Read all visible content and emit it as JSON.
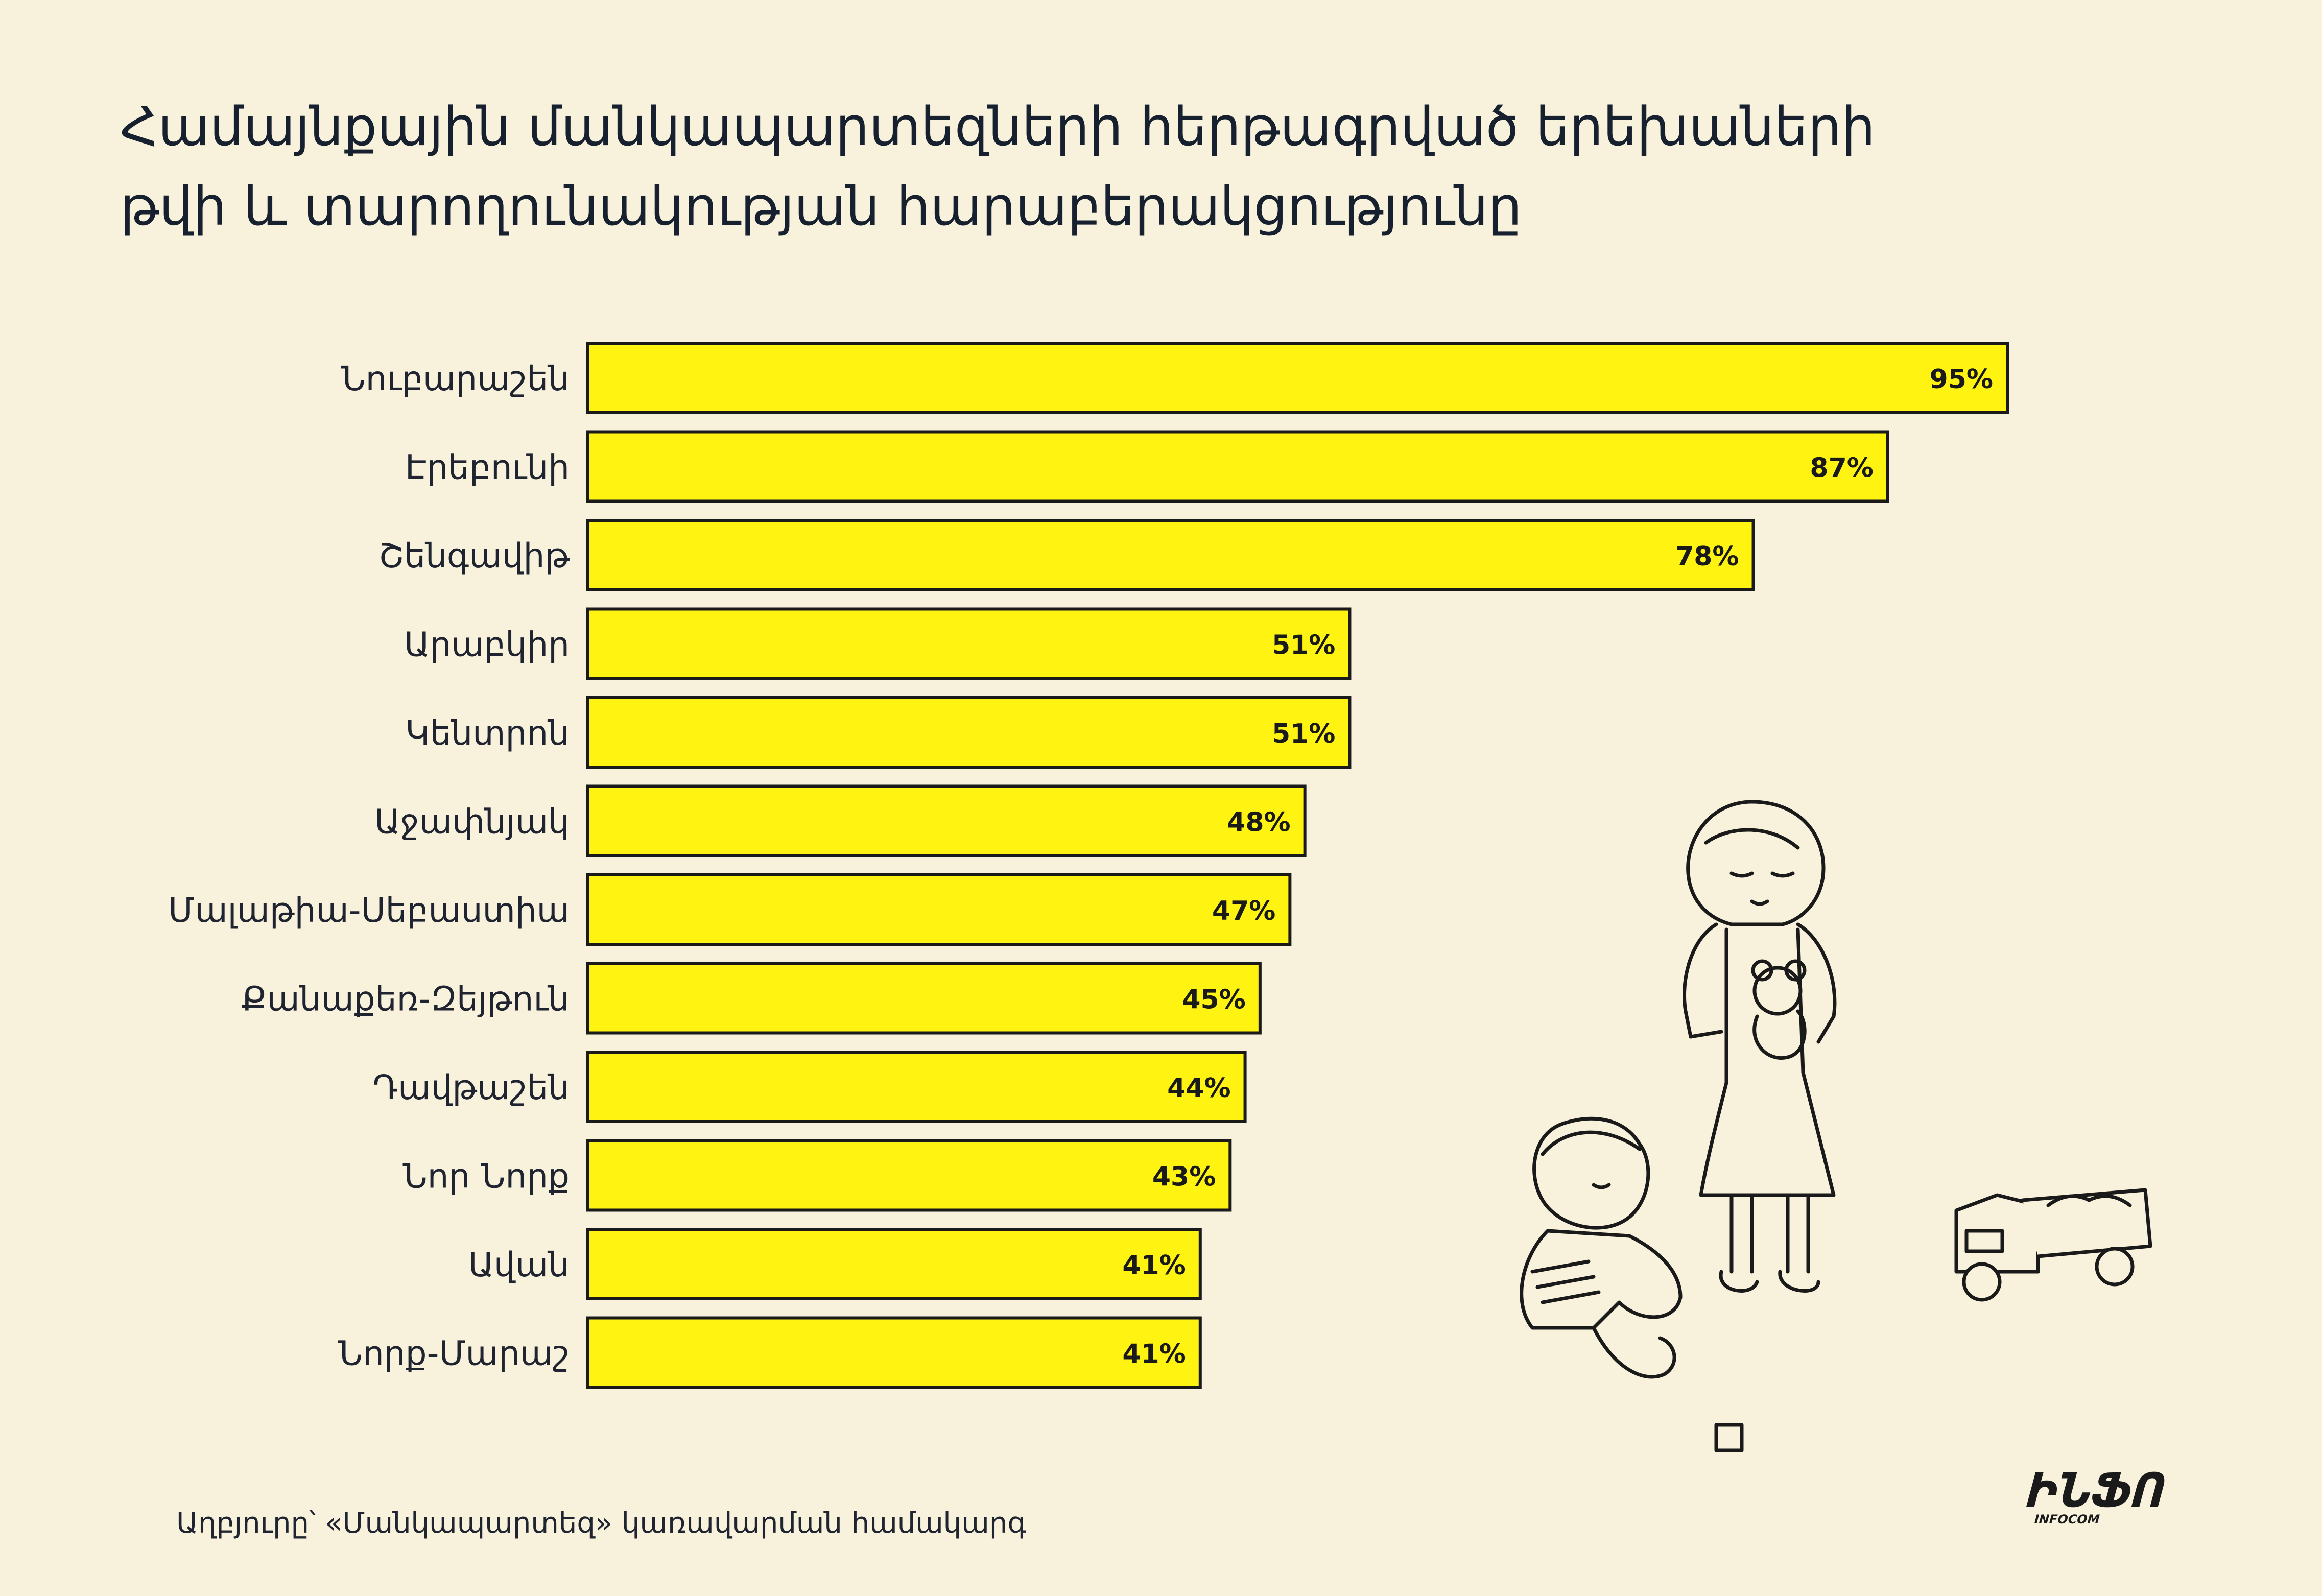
{
  "header": {
    "title_line1": "Համայնքային մանկապարտեզների հերթագրված երեխաների",
    "title_line2": "թվի և տարողունակության հարաբերակցությունը"
  },
  "footer": {
    "source": "Աղբյուրը՝ «Մանկապարտեզ» կառավարման համակարգ",
    "logo_text": "ԻՆՖՈ",
    "logo_subtext": "INFOCOM"
  },
  "colors": {
    "bar": "#fff312",
    "background": "#f8f2dc",
    "outline": "#1a1a1a"
  },
  "chart_data": {
    "type": "bar",
    "orientation": "horizontal",
    "title": "Համայնքային մանկապարտեզների հերթագրված երեխաների թվի և տարողունակության հարաբերակցությունը",
    "categories": [
      "Նուբարաշեն",
      "Էրեբունի",
      "Շենգավիթ",
      "Արաբկիր",
      "Կենտրոն",
      "Աջափնյակ",
      "Մալաթիա-Սեբաստիա",
      "Քանաքեռ-Զեյթուն",
      "Դավթաշեն",
      "Նոր Նորք",
      "Ավան",
      "Նորք-Մարաշ"
    ],
    "values": [
      95,
      87,
      78,
      51,
      51,
      48,
      47,
      45,
      44,
      43,
      41,
      41
    ],
    "value_labels": [
      "95%",
      "87%",
      "78%",
      "51%",
      "51%",
      "48%",
      "47%",
      "45%",
      "44%",
      "43%",
      "41%",
      "41%"
    ],
    "xlim": [
      0,
      100
    ],
    "grid": false,
    "legend": "none"
  }
}
